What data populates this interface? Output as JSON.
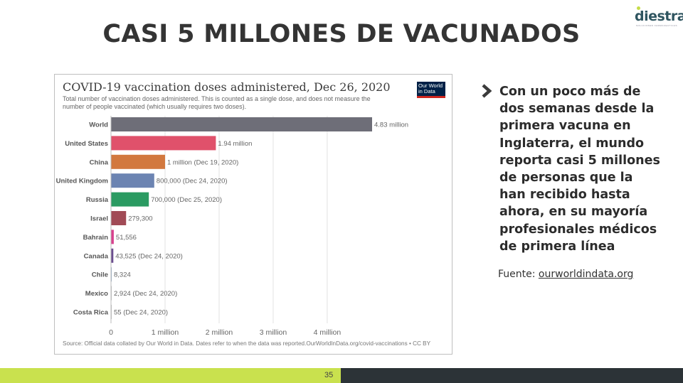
{
  "slide": {
    "title": "CASI 5 MILLONES DE VACUNADOS",
    "logo_text": "diestra",
    "logo_subtext": "SOLUCIONES FARMACEUTICAS",
    "body_text": "Con un poco más de dos semanas desde la primera vacuna en Inglaterra, el mundo reporta casi 5 millones de personas que la han recibido hasta ahora, en su mayoría profesionales médicos de primera línea",
    "source_prefix": "Fuente: ",
    "source_link": "ourworldindata.org",
    "page_number": "35"
  },
  "chart_header": {
    "badge_line1": "Our World",
    "badge_line2": "in Data"
  },
  "chart_data": {
    "type": "bar",
    "orientation": "horizontal",
    "title": "COVID-19 vaccination doses administered, Dec 26, 2020",
    "subtitle": "Total number of vaccination doses administered. This is counted as a single dose, and does not measure the number of people vaccinated (which usually requires two doses).",
    "source": "Source: Official data collated by Our World in Data. Dates refer to when the data was reported.OurWorldInData.org/covid-vaccinations • CC BY",
    "categories": [
      "World",
      "United States",
      "China",
      "United Kingdom",
      "Russia",
      "Israel",
      "Bahrain",
      "Canada",
      "Chile",
      "Mexico",
      "Costa Rica"
    ],
    "values": [
      4830000,
      1940000,
      1000000,
      800000,
      700000,
      279300,
      51556,
      43525,
      8324,
      2924,
      55
    ],
    "value_labels": [
      "4.83 million",
      "1.94 million",
      "1 million (Dec 19, 2020)",
      "800,000 (Dec 24, 2020)",
      "700,000 (Dec 25, 2020)",
      "279,300",
      "51,556",
      "43,525 (Dec 24, 2020)",
      "8,324",
      "2,924 (Dec 24, 2020)",
      "55 (Dec 24, 2020)"
    ],
    "colors": [
      "#6e6e78",
      "#e0516b",
      "#d2783f",
      "#6c84b2",
      "#2b9b62",
      "#a14b56",
      "#d8428e",
      "#6b4d8f",
      "#8aa3c0",
      "#bbbbbb",
      "#bbbbbb"
    ],
    "x_ticks": [
      0,
      1000000,
      2000000,
      3000000,
      4000000
    ],
    "x_tick_labels": [
      "0",
      "1 million",
      "2 million",
      "3 million",
      "4 million"
    ],
    "xlim": [
      0,
      4830000
    ],
    "grid": true
  }
}
